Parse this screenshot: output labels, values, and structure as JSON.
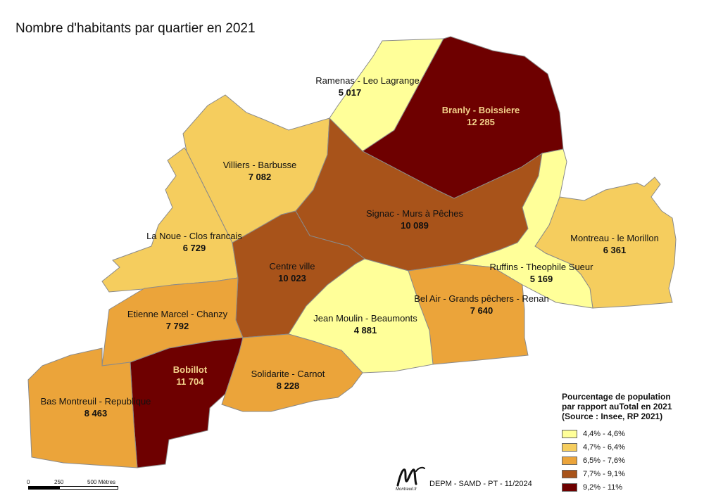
{
  "title": "Nombre d'habitants par quartier en 2021",
  "districts": [
    {
      "id": "ramenas",
      "name": "Ramenas - Leo Lagrange",
      "population": "5 017",
      "class": 1
    },
    {
      "id": "branly",
      "name": "Branly - Boissiere",
      "population": "12 285",
      "class": 5
    },
    {
      "id": "villiers",
      "name": "Villiers - Barbusse",
      "population": "7 082",
      "class": 2
    },
    {
      "id": "signac",
      "name": "Signac - Murs à Pêches",
      "population": "10 089",
      "class": 4
    },
    {
      "id": "lanoue",
      "name": "La Noue - Clos francais",
      "population": "6 729",
      "class": 2
    },
    {
      "id": "montreau",
      "name": "Montreau - le Morillon",
      "population": "6 361",
      "class": 2
    },
    {
      "id": "centre",
      "name": "Centre ville",
      "population": "10 023",
      "class": 4
    },
    {
      "id": "ruffins",
      "name": "Ruffins -  Theophile Sueur",
      "population": "5 169",
      "class": 1
    },
    {
      "id": "belair",
      "name": "Bel Air - Grands pêchers - Renan",
      "population": "7 640",
      "class": 3
    },
    {
      "id": "etienne",
      "name": "Etienne Marcel - Chanzy",
      "population": "7 792",
      "class": 3
    },
    {
      "id": "jeanmoulin",
      "name": "Jean Moulin - Beaumonts",
      "population": "4 881",
      "class": 1
    },
    {
      "id": "bobillot",
      "name": "Bobillot",
      "population": "11 704",
      "class": 5
    },
    {
      "id": "solidarite",
      "name": "Solidarite - Carnot",
      "population": "8 228",
      "class": 3
    },
    {
      "id": "basmontreuil",
      "name": "Bas Montreuil - Republique",
      "population": "8 463",
      "class": 3
    }
  ],
  "legend": {
    "title": "Pourcentage de population\npar rapport auTotal en 2021\n(Source : Insee, RP 2021)",
    "classes": [
      {
        "label": "4,4% - 4,6%",
        "color": "#ffff99"
      },
      {
        "label": "4,7% - 6,4%",
        "color": "#f5cd5e"
      },
      {
        "label": "6,5% - 7,6%",
        "color": "#eba43a"
      },
      {
        "label": "7,7% - 9,1%",
        "color": "#a8531a"
      },
      {
        "label": "9,2% - 11%",
        "color": "#6e0000"
      }
    ]
  },
  "scale": {
    "labels": [
      "0",
      "250",
      "500 Mètres"
    ]
  },
  "credit": "DEPM - SAMD - PT - 11/2024",
  "logo_text": "Montreuil.fr"
}
